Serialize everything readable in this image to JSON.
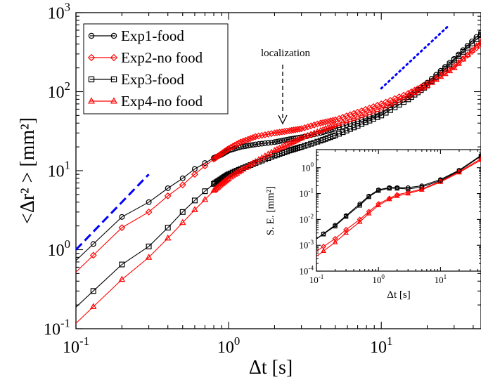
{
  "chart_data": [
    {
      "type": "line",
      "xscale": "log",
      "yscale": "log",
      "xlim": [
        0.1,
        45
      ],
      "ylim": [
        0.1,
        1000
      ],
      "xlabel": "Δt [s]",
      "ylabel": "<Δr² > [mm²]",
      "x_ticks": [
        0.1,
        1,
        10
      ],
      "y_ticks": [
        0.1,
        1,
        10,
        100,
        1000
      ],
      "legend_position": "top-left",
      "series": [
        {
          "name": "Exp1-food",
          "color": "#000000",
          "marker": "circle",
          "points": [
            [
              0.13,
              1.18
            ],
            [
              0.2,
              2.6
            ],
            [
              0.3,
              4.0
            ],
            [
              0.4,
              6.0
            ],
            [
              0.5,
              8.0
            ],
            [
              0.6,
              10.5
            ],
            [
              0.7,
              12.5
            ],
            [
              0.8,
              14.5
            ],
            [
              0.9,
              16.0
            ],
            [
              1.0,
              18.0
            ],
            [
              1.2,
              20.0
            ],
            [
              1.5,
              21.5
            ],
            [
              2.0,
              23.0
            ],
            [
              2.5,
              25.0
            ],
            [
              3.0,
              26.5
            ],
            [
              4.0,
              30.0
            ],
            [
              5.0,
              34.0
            ],
            [
              7.0,
              42.0
            ],
            [
              10.0,
              55.0
            ],
            [
              15.0,
              85.0
            ],
            [
              20.0,
              130.0
            ],
            [
              30.0,
              260.0
            ],
            [
              45.0,
              560.0
            ]
          ]
        },
        {
          "name": "Exp2-no food",
          "color": "#ff0000",
          "marker": "diamond",
          "points": [
            [
              0.13,
              0.85
            ],
            [
              0.2,
              1.9
            ],
            [
              0.3,
              3.0
            ],
            [
              0.4,
              4.8
            ],
            [
              0.5,
              6.6
            ],
            [
              0.6,
              9.0
            ],
            [
              0.7,
              11.5
            ],
            [
              0.8,
              14.0
            ],
            [
              0.9,
              16.5
            ],
            [
              1.0,
              19.0
            ],
            [
              1.2,
              23.0
            ],
            [
              1.5,
              27.0
            ],
            [
              2.0,
              30.0
            ],
            [
              2.5,
              32.0
            ],
            [
              3.0,
              34.0
            ],
            [
              4.0,
              40.0
            ],
            [
              5.0,
              44.0
            ],
            [
              7.0,
              55.0
            ],
            [
              10.0,
              70.0
            ],
            [
              15.0,
              95.0
            ],
            [
              20.0,
              125.0
            ],
            [
              30.0,
              210.0
            ],
            [
              45.0,
              400.0
            ]
          ]
        },
        {
          "name": "Exp3-food",
          "color": "#000000",
          "marker": "square",
          "points": [
            [
              0.13,
              0.3
            ],
            [
              0.2,
              0.65
            ],
            [
              0.3,
              1.1
            ],
            [
              0.4,
              1.9
            ],
            [
              0.5,
              3.0
            ],
            [
              0.6,
              4.2
            ],
            [
              0.7,
              5.5
            ],
            [
              0.8,
              6.8
            ],
            [
              0.9,
              7.9
            ],
            [
              1.0,
              9.0
            ],
            [
              1.2,
              10.5
            ],
            [
              1.5,
              12.5
            ],
            [
              2.0,
              15.5
            ],
            [
              2.5,
              18.0
            ],
            [
              3.0,
              20.0
            ],
            [
              4.0,
              24.0
            ],
            [
              5.0,
              28.0
            ],
            [
              7.0,
              37.0
            ],
            [
              10.0,
              50.0
            ],
            [
              15.0,
              80.0
            ],
            [
              20.0,
              120.0
            ],
            [
              30.0,
              250.0
            ],
            [
              45.0,
              520.0
            ]
          ]
        },
        {
          "name": "Exp4-no food",
          "color": "#ff0000",
          "marker": "triangle",
          "points": [
            [
              0.13,
              0.19
            ],
            [
              0.2,
              0.42
            ],
            [
              0.3,
              0.8
            ],
            [
              0.4,
              1.4
            ],
            [
              0.5,
              2.2
            ],
            [
              0.6,
              3.2
            ],
            [
              0.7,
              4.3
            ],
            [
              0.8,
              5.6
            ],
            [
              0.9,
              6.8
            ],
            [
              1.0,
              8.0
            ],
            [
              1.2,
              10.0
            ],
            [
              1.5,
              13.0
            ],
            [
              2.0,
              18.0
            ],
            [
              2.5,
              22.0
            ],
            [
              3.0,
              26.0
            ],
            [
              4.0,
              32.0
            ],
            [
              5.0,
              38.0
            ],
            [
              7.0,
              48.0
            ],
            [
              10.0,
              62.0
            ],
            [
              15.0,
              88.0
            ],
            [
              20.0,
              120.0
            ],
            [
              30.0,
              200.0
            ],
            [
              45.0,
              430.0
            ]
          ]
        }
      ],
      "reference_lines": [
        {
          "style": "dashed",
          "color": "#0000ff",
          "points": [
            [
              0.1,
              1.0
            ],
            [
              0.3,
              9.0
            ]
          ]
        },
        {
          "style": "dotted",
          "color": "#0000ff",
          "points": [
            [
              10,
              110
            ],
            [
              28,
              700
            ]
          ]
        }
      ],
      "annotations": [
        {
          "text": "localization",
          "x": 2.2,
          "y": 32
        }
      ]
    },
    {
      "type": "line",
      "inset": true,
      "xscale": "log",
      "yscale": "log",
      "xlim": [
        0.1,
        45
      ],
      "ylim": [
        0.0001,
        5
      ],
      "xlabel": "Δt [s]",
      "ylabel": "S. E. [mm²]",
      "x_ticks": [
        0.1,
        1,
        10
      ],
      "y_ticks": [
        0.0001,
        0.001,
        0.01,
        0.1,
        1
      ],
      "series": [
        {
          "color": "#000000",
          "marker": "circle",
          "points": [
            [
              0.13,
              0.0028
            ],
            [
              0.2,
              0.006
            ],
            [
              0.3,
              0.014
            ],
            [
              0.5,
              0.04
            ],
            [
              0.7,
              0.08
            ],
            [
              1.0,
              0.14
            ],
            [
              1.5,
              0.17
            ],
            [
              2.0,
              0.17
            ],
            [
              3.0,
              0.17
            ],
            [
              5.0,
              0.2
            ],
            [
              10.0,
              0.35
            ],
            [
              20.0,
              0.8
            ],
            [
              45.0,
              3.0
            ]
          ]
        },
        {
          "color": "#ff0000",
          "marker": "diamond",
          "points": [
            [
              0.13,
              0.0009
            ],
            [
              0.2,
              0.0018
            ],
            [
              0.3,
              0.004
            ],
            [
              0.5,
              0.01
            ],
            [
              0.7,
              0.02
            ],
            [
              1.0,
              0.04
            ],
            [
              1.5,
              0.065
            ],
            [
              2.0,
              0.09
            ],
            [
              3.0,
              0.11
            ],
            [
              5.0,
              0.15
            ],
            [
              10.0,
              0.3
            ],
            [
              20.0,
              0.7
            ],
            [
              45.0,
              2.2
            ]
          ]
        },
        {
          "color": "#000000",
          "marker": "square",
          "points": [
            [
              0.13,
              0.0027
            ],
            [
              0.2,
              0.0055
            ],
            [
              0.3,
              0.013
            ],
            [
              0.5,
              0.035
            ],
            [
              0.7,
              0.075
            ],
            [
              1.0,
              0.13
            ],
            [
              1.5,
              0.16
            ],
            [
              2.0,
              0.16
            ],
            [
              3.0,
              0.15
            ],
            [
              5.0,
              0.18
            ],
            [
              10.0,
              0.32
            ],
            [
              20.0,
              0.75
            ],
            [
              45.0,
              2.8
            ]
          ]
        },
        {
          "color": "#ff0000",
          "marker": "triangle",
          "points": [
            [
              0.13,
              0.0006
            ],
            [
              0.2,
              0.0013
            ],
            [
              0.3,
              0.003
            ],
            [
              0.5,
              0.008
            ],
            [
              0.7,
              0.017
            ],
            [
              1.0,
              0.035
            ],
            [
              1.5,
              0.06
            ],
            [
              2.0,
              0.08
            ],
            [
              3.0,
              0.1
            ],
            [
              5.0,
              0.14
            ],
            [
              10.0,
              0.28
            ],
            [
              20.0,
              0.65
            ],
            [
              45.0,
              2.0
            ]
          ]
        }
      ]
    }
  ]
}
